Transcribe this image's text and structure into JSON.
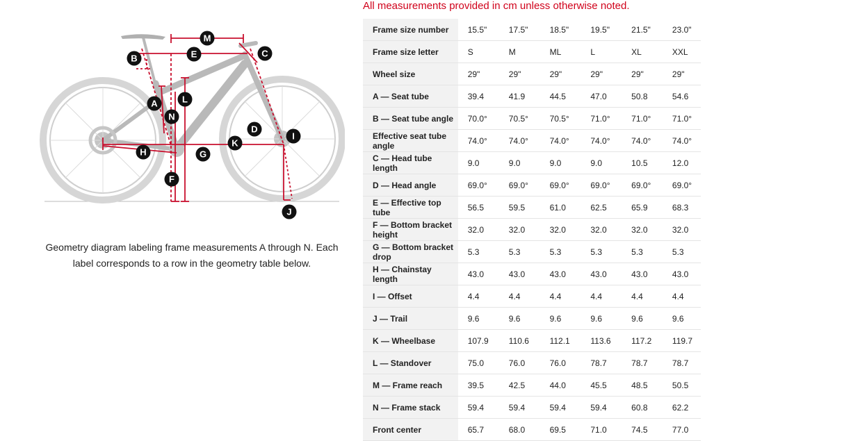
{
  "notice": "All measurements provided in cm unless otherwise noted.",
  "caption": "Geometry diagram labeling frame measurements A through N. Each label corresponds to a row in the geometry table below.",
  "diagram": {
    "markers": [
      "A",
      "B",
      "C",
      "D",
      "E",
      "F",
      "G",
      "H",
      "I",
      "J",
      "K",
      "L",
      "M",
      "N"
    ],
    "accent": "#c8102e"
  },
  "table": {
    "rows": [
      {
        "label": "Frame size number",
        "values": [
          "15.5\"",
          "17.5\"",
          "18.5\"",
          "19.5\"",
          "21.5\"",
          "23.0\""
        ]
      },
      {
        "label": "Frame size letter",
        "values": [
          "S",
          "M",
          "ML",
          "L",
          "XL",
          "XXL"
        ]
      },
      {
        "label": "Wheel size",
        "values": [
          "29\"",
          "29\"",
          "29\"",
          "29\"",
          "29\"",
          "29\""
        ]
      },
      {
        "label": "A — Seat tube",
        "values": [
          "39.4",
          "41.9",
          "44.5",
          "47.0",
          "50.8",
          "54.6"
        ]
      },
      {
        "label": "B — Seat tube angle",
        "values": [
          "70.0°",
          "70.5°",
          "70.5°",
          "71.0°",
          "71.0°",
          "71.0°"
        ]
      },
      {
        "label": "Effective seat tube angle",
        "values": [
          "74.0°",
          "74.0°",
          "74.0°",
          "74.0°",
          "74.0°",
          "74.0°"
        ]
      },
      {
        "label": "C — Head tube length",
        "values": [
          "9.0",
          "9.0",
          "9.0",
          "9.0",
          "10.5",
          "12.0"
        ]
      },
      {
        "label": "D — Head angle",
        "values": [
          "69.0°",
          "69.0°",
          "69.0°",
          "69.0°",
          "69.0°",
          "69.0°"
        ]
      },
      {
        "label": "E — Effective top tube",
        "values": [
          "56.5",
          "59.5",
          "61.0",
          "62.5",
          "65.9",
          "68.3"
        ]
      },
      {
        "label": "F — Bottom bracket height",
        "values": [
          "32.0",
          "32.0",
          "32.0",
          "32.0",
          "32.0",
          "32.0"
        ]
      },
      {
        "label": "G — Bottom bracket drop",
        "values": [
          "5.3",
          "5.3",
          "5.3",
          "5.3",
          "5.3",
          "5.3"
        ]
      },
      {
        "label": "H — Chainstay length",
        "values": [
          "43.0",
          "43.0",
          "43.0",
          "43.0",
          "43.0",
          "43.0"
        ]
      },
      {
        "label": "I — Offset",
        "values": [
          "4.4",
          "4.4",
          "4.4",
          "4.4",
          "4.4",
          "4.4"
        ]
      },
      {
        "label": "J — Trail",
        "values": [
          "9.6",
          "9.6",
          "9.6",
          "9.6",
          "9.6",
          "9.6"
        ]
      },
      {
        "label": "K — Wheelbase",
        "values": [
          "107.9",
          "110.6",
          "112.1",
          "113.6",
          "117.2",
          "119.7"
        ]
      },
      {
        "label": "L — Standover",
        "values": [
          "75.0",
          "76.0",
          "76.0",
          "78.7",
          "78.7",
          "78.7"
        ]
      },
      {
        "label": "M — Frame reach",
        "values": [
          "39.5",
          "42.5",
          "44.0",
          "45.5",
          "48.5",
          "50.5"
        ]
      },
      {
        "label": "N — Frame stack",
        "values": [
          "59.4",
          "59.4",
          "59.4",
          "59.4",
          "60.8",
          "62.2"
        ]
      },
      {
        "label": "Front center",
        "values": [
          "65.7",
          "68.0",
          "69.5",
          "71.0",
          "74.5",
          "77.0"
        ]
      }
    ]
  }
}
